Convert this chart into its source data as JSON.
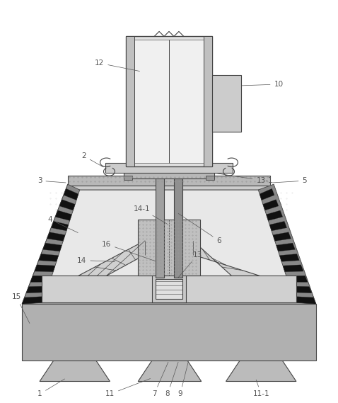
{
  "bg_color": "#ffffff",
  "lc": "#444444",
  "lc2": "#222222",
  "gray_light": "#d8d8d8",
  "gray_med": "#b8b8b8",
  "gray_dark": "#888888",
  "gray_stipple": "#c4c4c4",
  "black": "#111111",
  "white": "#f5f5f5",
  "label_fs": 7.5,
  "label_color": "#555555"
}
